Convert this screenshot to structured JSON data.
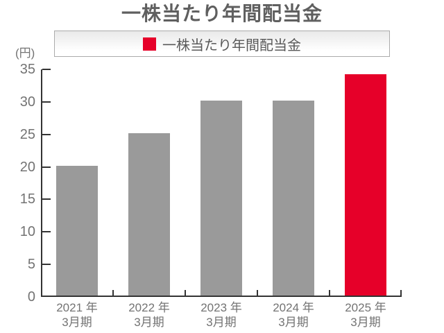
{
  "chart_data": {
    "type": "bar",
    "title": "一株当たり年間配当金",
    "unit_label": "(円)",
    "legend_label": "一株当たり年間配当金",
    "legend_position": "top-center",
    "categories": [
      [
        "2021 年",
        "3月期"
      ],
      [
        "2022 年",
        "3月期"
      ],
      [
        "2023 年",
        "3月期"
      ],
      [
        "2024 年",
        "3月期"
      ],
      [
        "2025 年",
        "3月期"
      ]
    ],
    "values": [
      20,
      25,
      30,
      30,
      34
    ],
    "bar_colors": [
      "#9a9a9a",
      "#9a9a9a",
      "#9a9a9a",
      "#9a9a9a",
      "#e60029"
    ],
    "ylim": [
      0,
      35
    ],
    "yticks": [
      0,
      5,
      10,
      15,
      20,
      25,
      30,
      35
    ],
    "grid": false,
    "colors": {
      "bar_default": "#9a9a9a",
      "bar_highlight": "#e60029",
      "axis": "#333333",
      "tick_label": "#737373",
      "title_text": "#5f5f5f",
      "legend_text": "#595959",
      "legend_border": "#ababab",
      "background": "#ffffff"
    }
  }
}
